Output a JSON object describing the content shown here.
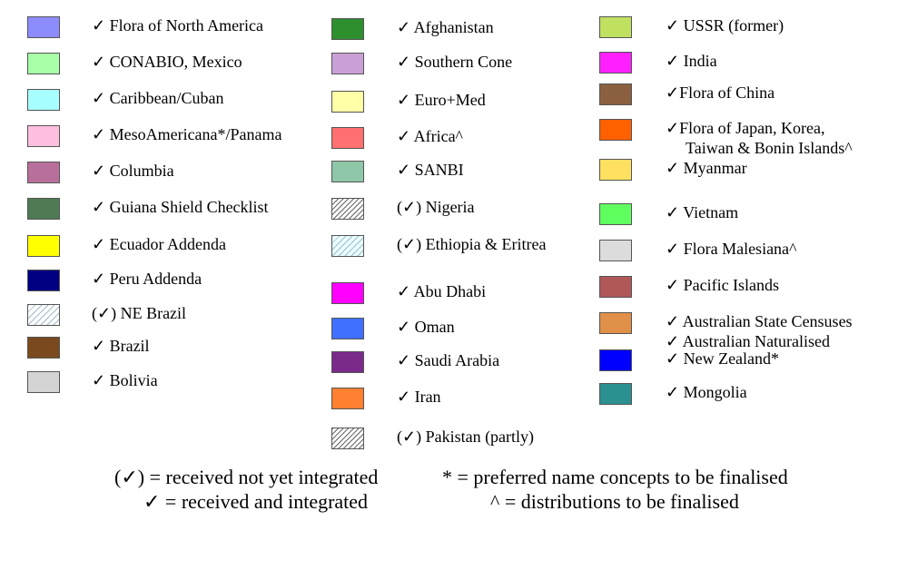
{
  "legend": {
    "columns": [
      [
        {
          "label": "✓ Flora of North America",
          "color": "#8c8cff"
        },
        {
          "label": "✓  CONABIO, Mexico",
          "color": "#a8ffa8"
        },
        {
          "label": "✓  Caribbean/Cuban",
          "color": "#a8ffff"
        },
        {
          "label": "✓  MesoAmericana*/Panama",
          "color": "#ffbfdf"
        },
        {
          "label": "✓  Columbia",
          "color": "#b8709a"
        },
        {
          "label": "✓ Guiana Shield Checklist",
          "color": "#4f7a53"
        },
        {
          "label": "✓ Ecuador Addenda",
          "color": "#ffff00"
        },
        {
          "label": "✓ Peru Addenda",
          "color": "#000080"
        },
        {
          "label": "(✓) NE Brazil",
          "color": "#ffffff",
          "pattern": "hatch-light"
        },
        {
          "label": "✓  Brazil",
          "color": "#7a4a1e"
        },
        {
          "label": "✓ Bolivia",
          "color": "#d4d4d4"
        }
      ],
      [
        {
          "label": "✓  Afghanistan",
          "color": "#2d8f2d"
        },
        {
          "label": "✓ Southern Cone",
          "color": "#c9a0d6"
        },
        {
          "label": "✓ Euro+Med",
          "color": "#ffffa8"
        },
        {
          "label": "✓ Africa^",
          "color": "#ff7070"
        },
        {
          "label": "✓ SANBI",
          "color": "#8ec8a8"
        },
        {
          "label": "(✓) Nigeria",
          "color": "#ffffff",
          "pattern": "hatch"
        },
        {
          "label": "(✓) Ethiopia & Eritrea",
          "color": "#eaffff",
          "pattern": "hatch-light"
        },
        {
          "label": "✓ Abu Dhabi",
          "color": "#ff00ff"
        },
        {
          "label": "✓ Oman",
          "color": "#4070ff"
        },
        {
          "label": "✓ Saudi Arabia",
          "color": "#7a2a8a"
        },
        {
          "label": "✓ Iran",
          "color": "#ff8030"
        },
        {
          "label": "(✓) Pakistan (partly)",
          "color": "#ffffff",
          "pattern": "hatch"
        }
      ],
      [
        {
          "label": "✓ USSR (former)",
          "color": "#c0e060"
        },
        {
          "label": "✓  India",
          "color": "#ff20ff"
        },
        {
          "label": "✓Flora of China",
          "color": "#8b6040"
        },
        {
          "label": "✓Flora of Japan, Korea,",
          "label2": "Taiwan & Bonin Islands^",
          "color": "#ff6000"
        },
        {
          "label": "✓ Myanmar",
          "color": "#ffe060"
        },
        {
          "label": "✓ Vietnam",
          "color": "#60ff60"
        },
        {
          "label": "✓ Flora Malesiana^",
          "color": "#dcdcdc"
        },
        {
          "label": "✓ Pacific Islands",
          "color": "#b05858"
        },
        {
          "label": "✓ Australian State Censuses",
          "label2": "✓ Australian Naturalised",
          "color": "#e09048"
        },
        {
          "label": "✓ New Zealand*",
          "color": "#0000ff"
        },
        {
          "label": "✓ Mongolia",
          "color": "#2a9090"
        }
      ]
    ]
  },
  "key": {
    "received_not_integrated": "(✓) = received not yet integrated",
    "received_integrated": "✓ = received and integrated",
    "preferred_name": "* = preferred name concepts to be finalised",
    "distributions": "^ = distributions to be finalised"
  }
}
